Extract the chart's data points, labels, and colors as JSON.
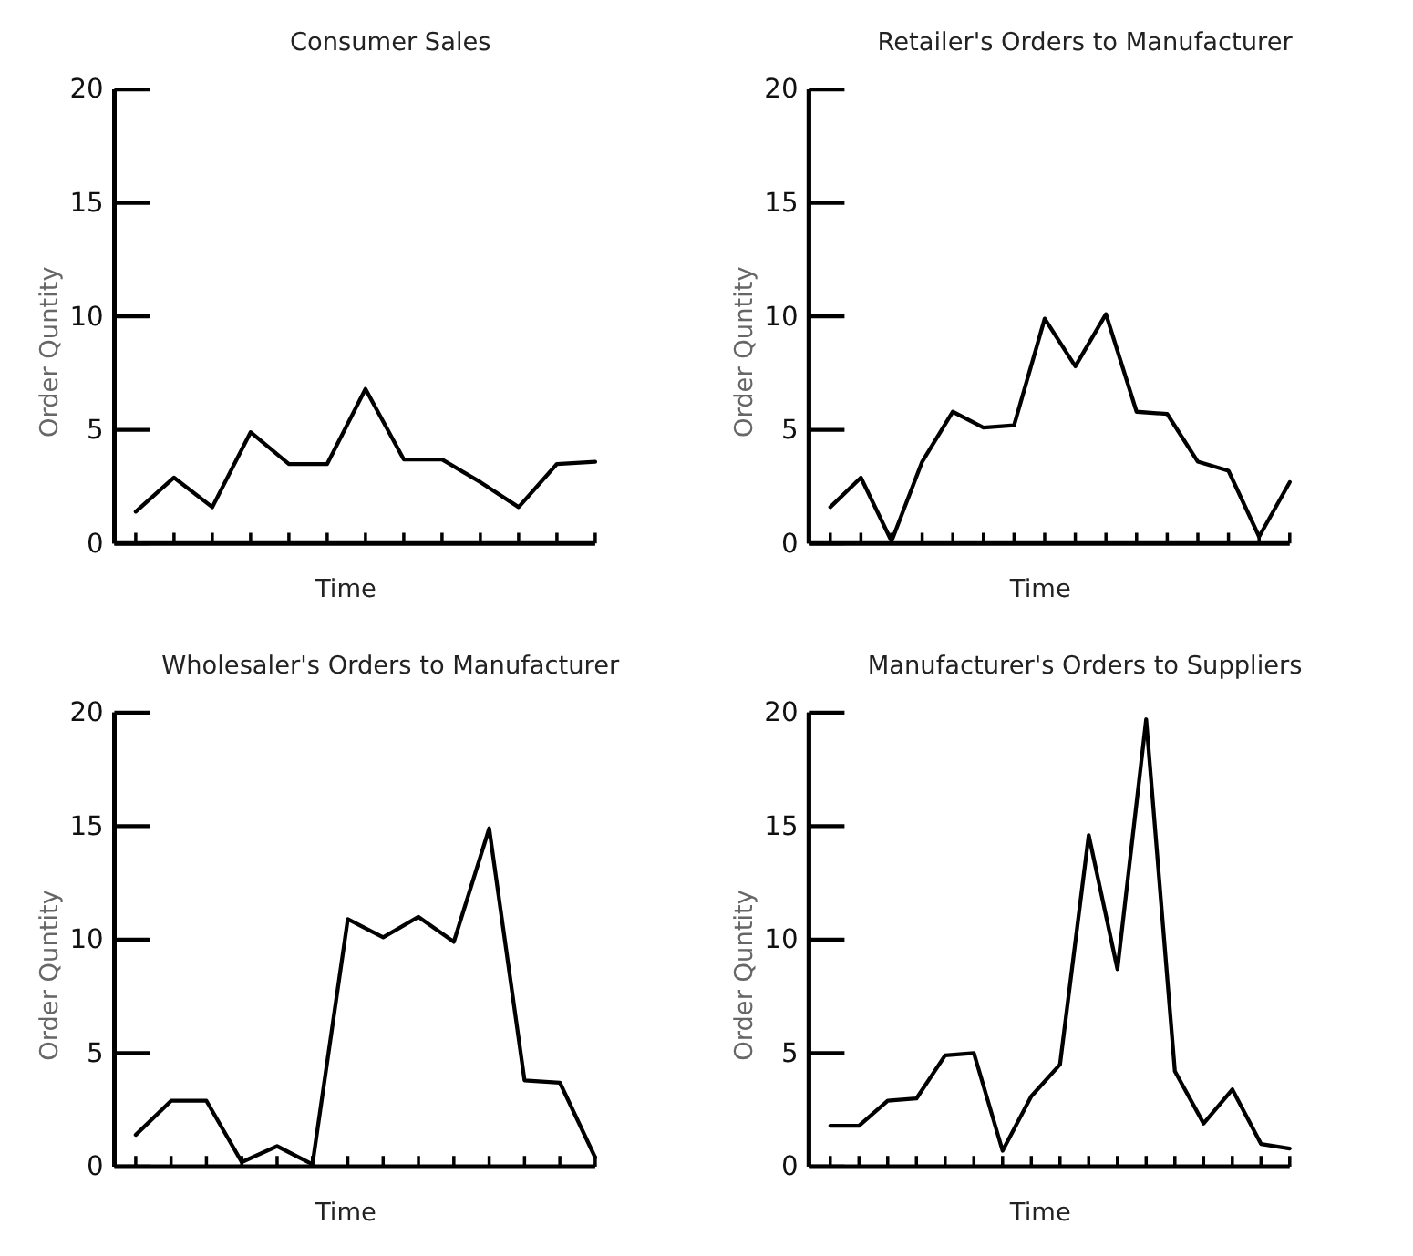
{
  "chart_data": [
    {
      "type": "line",
      "title": "Consumer Sales",
      "xlabel": "Time",
      "ylabel": "Order Quntity",
      "categories": [
        null,
        null,
        null,
        null,
        null,
        null,
        null,
        null,
        null,
        null,
        null,
        null,
        null
      ],
      "values": [
        1.4,
        2.9,
        1.6,
        4.9,
        3.5,
        3.5,
        6.8,
        3.7,
        3.7,
        2.7,
        1.6,
        3.5,
        3.6
      ],
      "color": "#000000",
      "ylim": [
        0,
        20
      ],
      "yticks": [
        0,
        5,
        10,
        15,
        20
      ],
      "grid": false,
      "tick_labels": "y",
      "marker": "none"
    },
    {
      "type": "line",
      "title": "Retailer's Orders to Manufacturer",
      "xlabel": "Time",
      "ylabel": "Order Quntity",
      "categories": [
        null,
        null,
        null,
        null,
        null,
        null,
        null,
        null,
        null,
        null,
        null,
        null,
        null,
        null,
        null,
        null
      ],
      "values": [
        1.6,
        2.9,
        0.1,
        3.6,
        5.8,
        5.1,
        5.2,
        9.9,
        7.8,
        10.1,
        5.8,
        5.7,
        3.6,
        3.2,
        0.3,
        2.7
      ],
      "color": "#000000",
      "ylim": [
        0,
        20
      ],
      "yticks": [
        0,
        5,
        10,
        15,
        20
      ],
      "grid": false,
      "tick_labels": "y",
      "marker": "none"
    },
    {
      "type": "line",
      "title": "Wholesaler's Orders to Manufacturer",
      "xlabel": "Time",
      "ylabel": "Order Quntity",
      "categories": [
        null,
        null,
        null,
        null,
        null,
        null,
        null,
        null,
        null,
        null,
        null,
        null,
        null,
        null
      ],
      "values": [
        1.4,
        2.9,
        2.9,
        0.2,
        0.9,
        0.1,
        10.9,
        10.1,
        11.0,
        9.9,
        14.9,
        3.8,
        3.7,
        0.4
      ],
      "color": "#000000",
      "ylim": [
        0,
        20
      ],
      "yticks": [
        0,
        5,
        10,
        15,
        20
      ],
      "grid": false,
      "tick_labels": "y",
      "marker": "none"
    },
    {
      "type": "line",
      "title": "Manufacturer's Orders to Suppliers",
      "xlabel": "Time",
      "ylabel": "Order Quntity",
      "categories": [
        null,
        null,
        null,
        null,
        null,
        null,
        null,
        null,
        null,
        null,
        null,
        null,
        null,
        null,
        null,
        null,
        null
      ],
      "values": [
        1.8,
        1.8,
        2.9,
        3.0,
        4.9,
        5.0,
        0.7,
        3.1,
        4.5,
        14.6,
        8.7,
        19.7,
        4.2,
        1.9,
        3.4,
        1.0,
        0.8
      ],
      "color": "#000000",
      "ylim": [
        0,
        20
      ],
      "yticks": [
        0,
        5,
        10,
        15,
        20
      ],
      "grid": false,
      "tick_labels": "y",
      "marker": "none"
    }
  ]
}
